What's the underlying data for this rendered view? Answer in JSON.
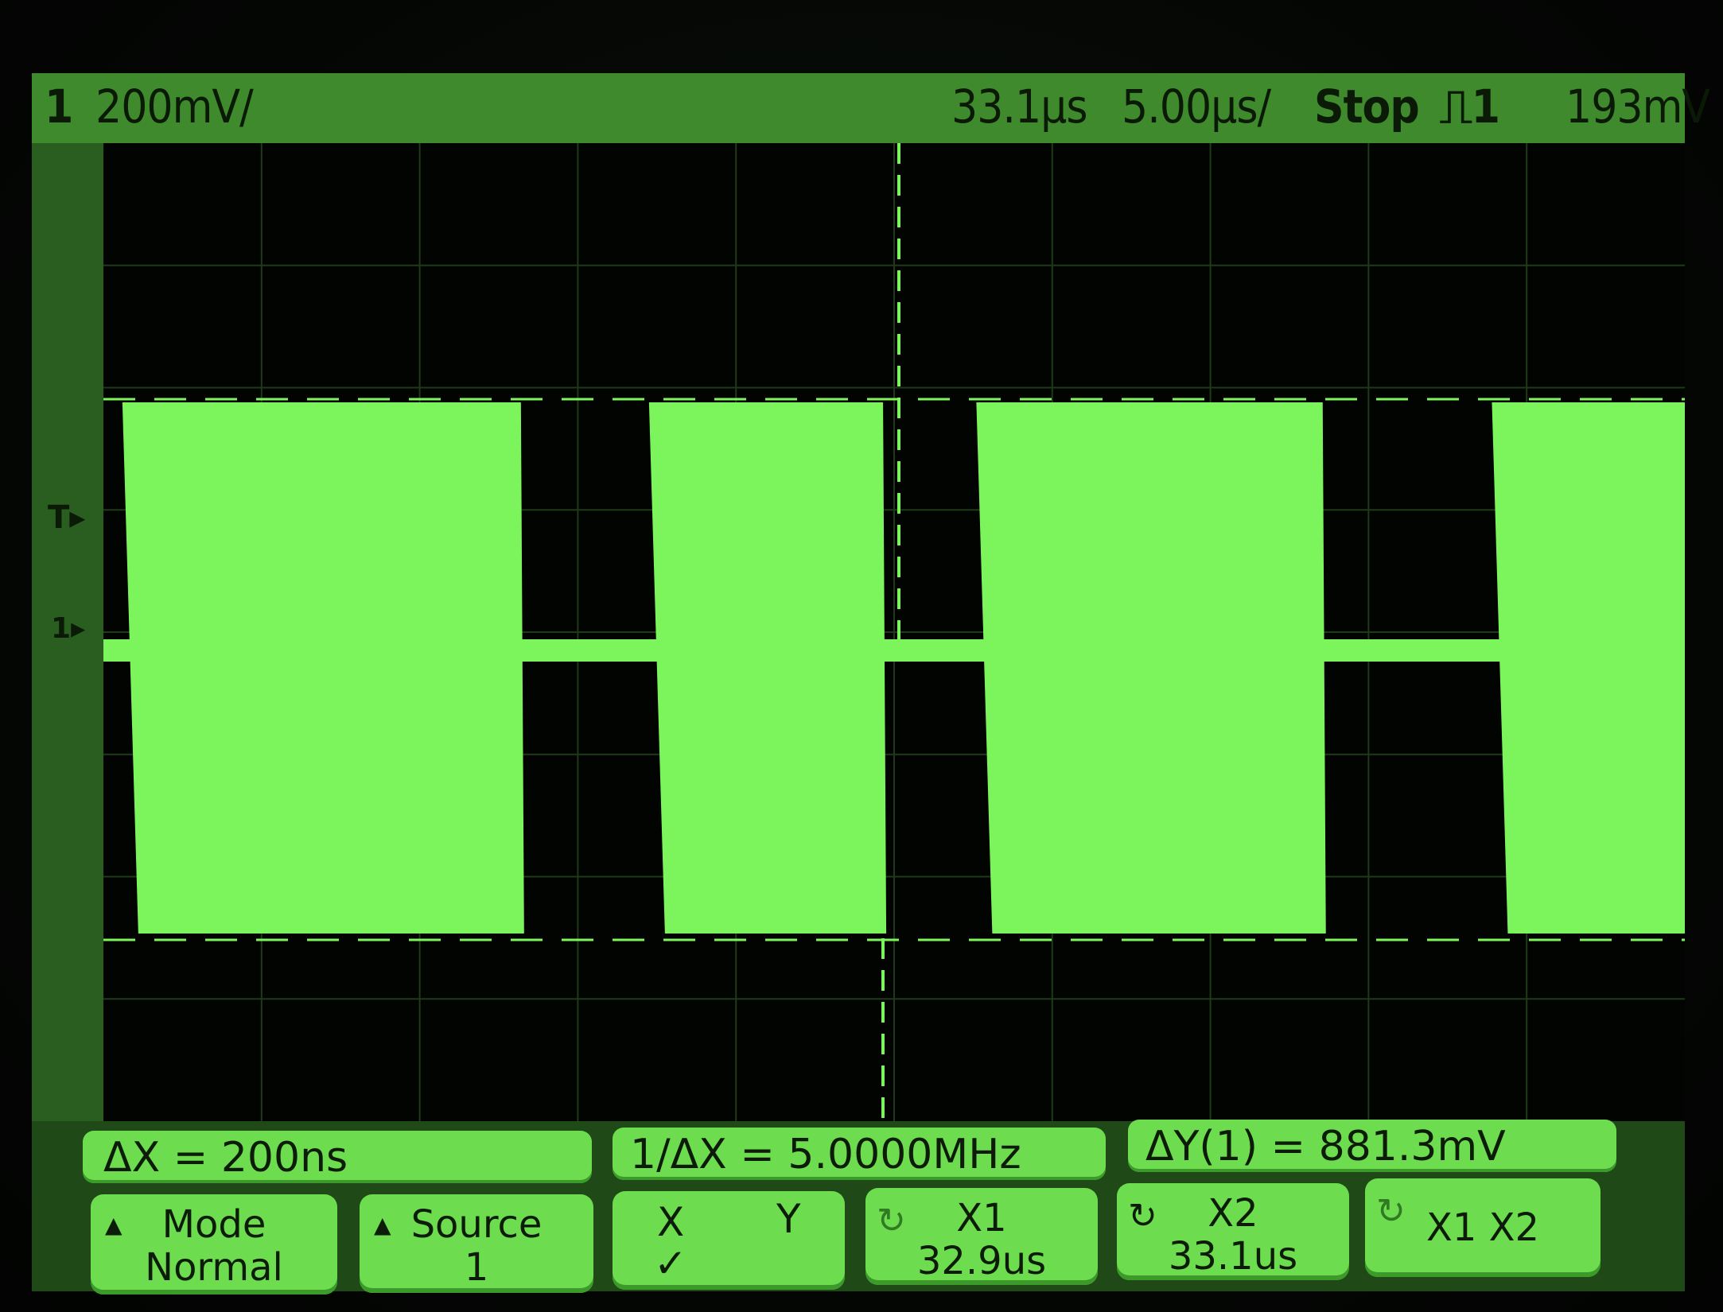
{
  "header": {
    "channel": "1",
    "volts_per_div": "200mV/",
    "time_position": "33.1μs",
    "time_per_div": "5.00μs/",
    "run_state": "Stop",
    "trigger_source": "1",
    "trigger_level": "193mV"
  },
  "markers": {
    "trigger_marker": "T",
    "channel_marker": "1"
  },
  "measurements": {
    "delta_x": "ΔX = 200ns",
    "inv_delta_x": "1/ΔX = 5.0000MHz",
    "delta_y": "ΔY(1) = 881.3mV"
  },
  "softkeys": {
    "mode": {
      "title": "Mode",
      "value": "Normal"
    },
    "source": {
      "title": "Source",
      "value": "1"
    },
    "xy": {
      "x_label": "X",
      "y_label": "Y",
      "check": "✓"
    },
    "x1": {
      "title": "X1",
      "value": "32.9us"
    },
    "x2": {
      "title": "X2",
      "value": "33.1us"
    },
    "x1x2": {
      "title": "X1 X2"
    }
  },
  "colors": {
    "trace": "#7cf55c",
    "graticule": "#1e3a18",
    "background": "#020402"
  },
  "waveform": {
    "bursts": [
      {
        "start_div": 0.12,
        "end_div": 2.64
      },
      {
        "start_div": 3.45,
        "end_div": 4.93
      },
      {
        "start_div": 5.52,
        "end_div": 7.71
      },
      {
        "start_div": 8.78,
        "end_div": 10.0
      }
    ]
  }
}
